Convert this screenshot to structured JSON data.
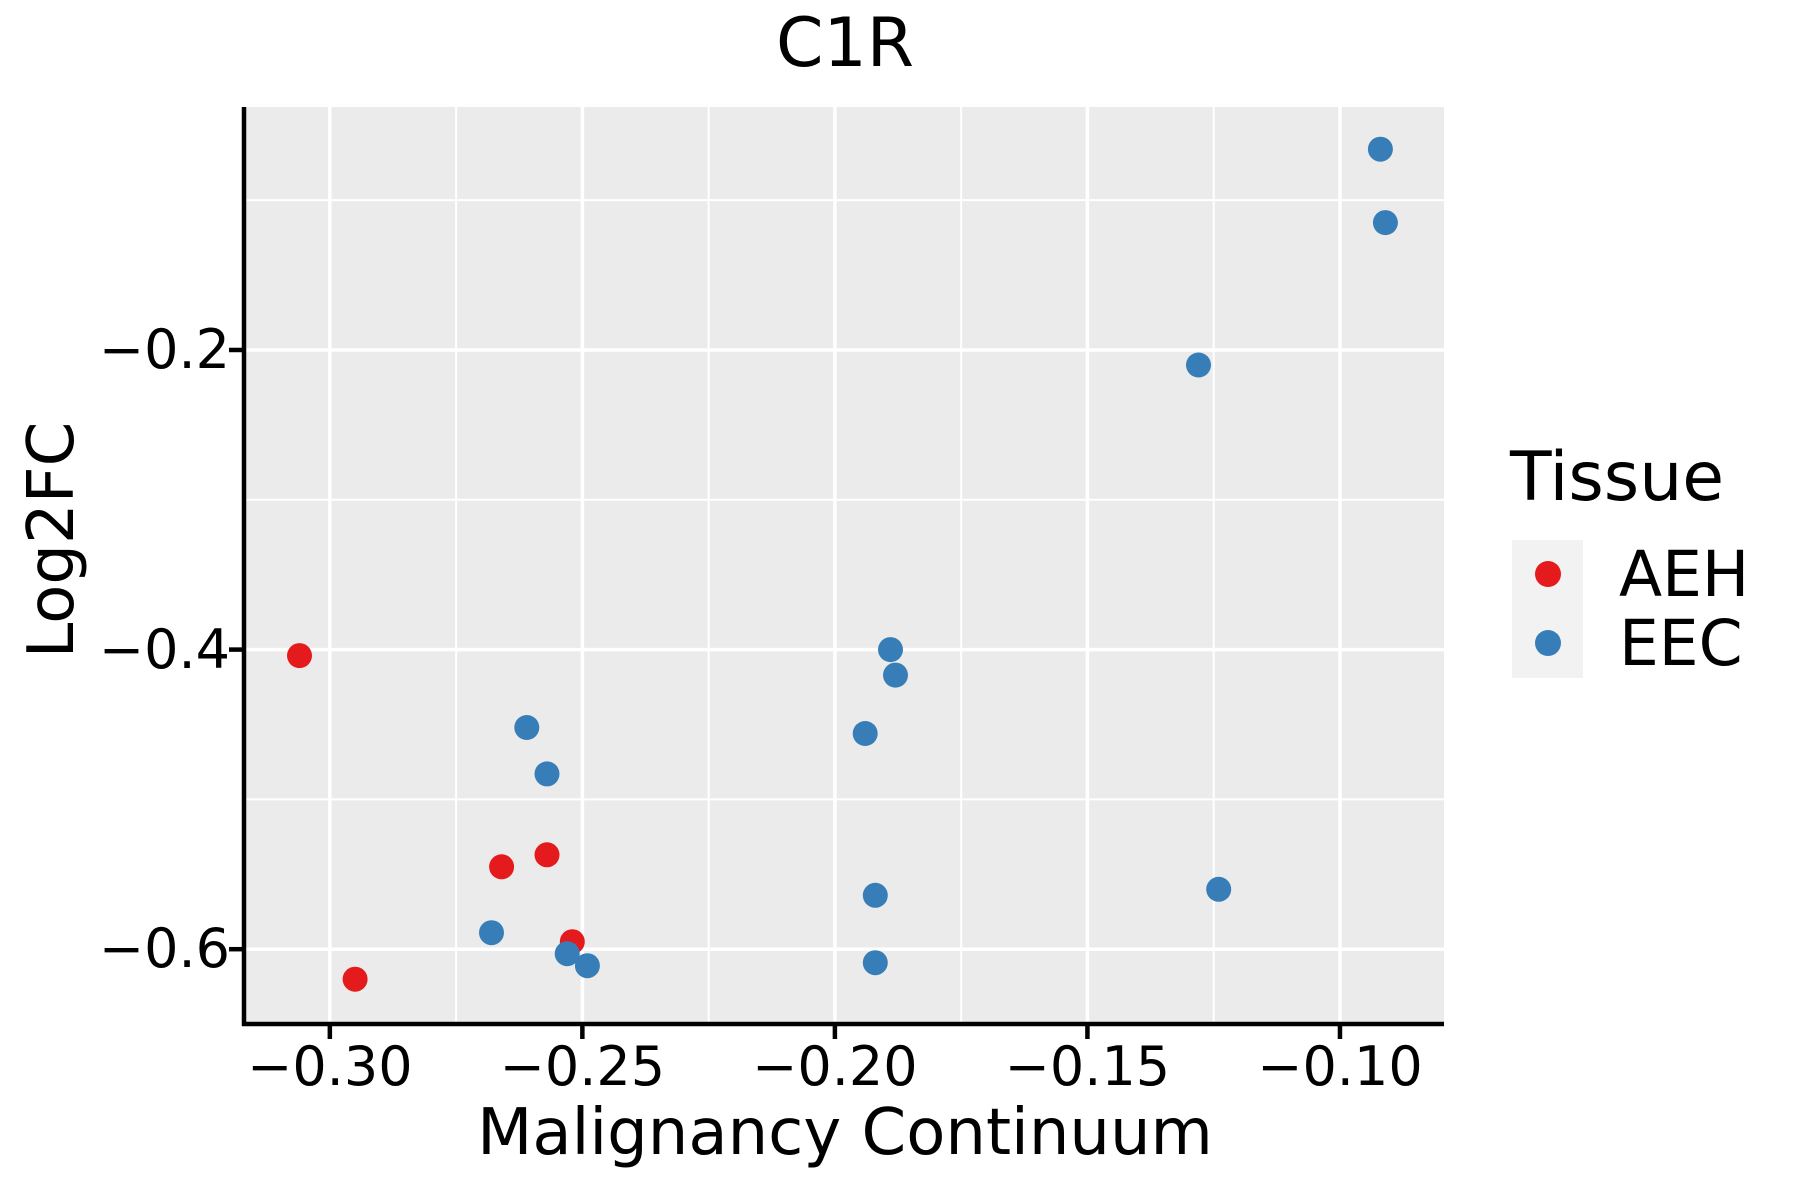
{
  "title": "C1R",
  "axes": {
    "x": {
      "label": "Malignancy Continuum",
      "tick_labels": [
        "−0.30",
        "−0.25",
        "−0.20",
        "−0.15",
        "−0.10"
      ],
      "tick_values": [
        -0.3,
        -0.25,
        -0.2,
        -0.15,
        -0.1
      ],
      "minor_tick_values": [
        -0.275,
        -0.225,
        -0.175,
        -0.125
      ],
      "range": [
        -0.3166,
        -0.0794
      ]
    },
    "y": {
      "label": "Log2FC",
      "tick_labels": [
        "−0.2",
        "−0.4",
        "−0.6"
      ],
      "tick_values": [
        -0.2,
        -0.4,
        -0.6
      ],
      "minor_tick_values": [
        -0.1,
        -0.3,
        -0.5
      ],
      "range": [
        -0.6486,
        -0.0378
      ]
    }
  },
  "legend": {
    "title": "Tissue",
    "entries": [
      {
        "label": "AEH",
        "color": "#E41A1C"
      },
      {
        "label": "EEC",
        "color": "#377EB8"
      }
    ]
  },
  "colors": {
    "panel_bg": "#EBEBEB",
    "grid": "#FFFFFF",
    "axis": "#000000",
    "legend_key_bg": "#F2F2F2",
    "aeh": "#E41A1C",
    "eec": "#377EB8"
  },
  "chart_data": {
    "type": "scatter",
    "title": "C1R",
    "xlabel": "Malignancy Continuum",
    "ylabel": "Log2FC",
    "xlim": [
      -0.3166,
      -0.0794
    ],
    "ylim": [
      -0.6486,
      -0.0378
    ],
    "grid": true,
    "legend_position": "right",
    "series": [
      {
        "name": "AEH",
        "color": "#E41A1C",
        "points": [
          [
            -0.306,
            -0.404
          ],
          [
            -0.295,
            -0.62
          ],
          [
            -0.266,
            -0.545
          ],
          [
            -0.257,
            -0.537
          ],
          [
            -0.252,
            -0.595
          ]
        ]
      },
      {
        "name": "EEC",
        "color": "#377EB8",
        "points": [
          [
            -0.268,
            -0.589
          ],
          [
            -0.261,
            -0.452
          ],
          [
            -0.257,
            -0.483
          ],
          [
            -0.253,
            -0.603
          ],
          [
            -0.249,
            -0.611
          ],
          [
            -0.194,
            -0.456
          ],
          [
            -0.192,
            -0.564
          ],
          [
            -0.192,
            -0.609
          ],
          [
            -0.189,
            -0.4
          ],
          [
            -0.188,
            -0.417
          ],
          [
            -0.128,
            -0.21
          ],
          [
            -0.124,
            -0.56
          ],
          [
            -0.092,
            -0.066
          ],
          [
            -0.091,
            -0.115
          ]
        ]
      }
    ]
  }
}
